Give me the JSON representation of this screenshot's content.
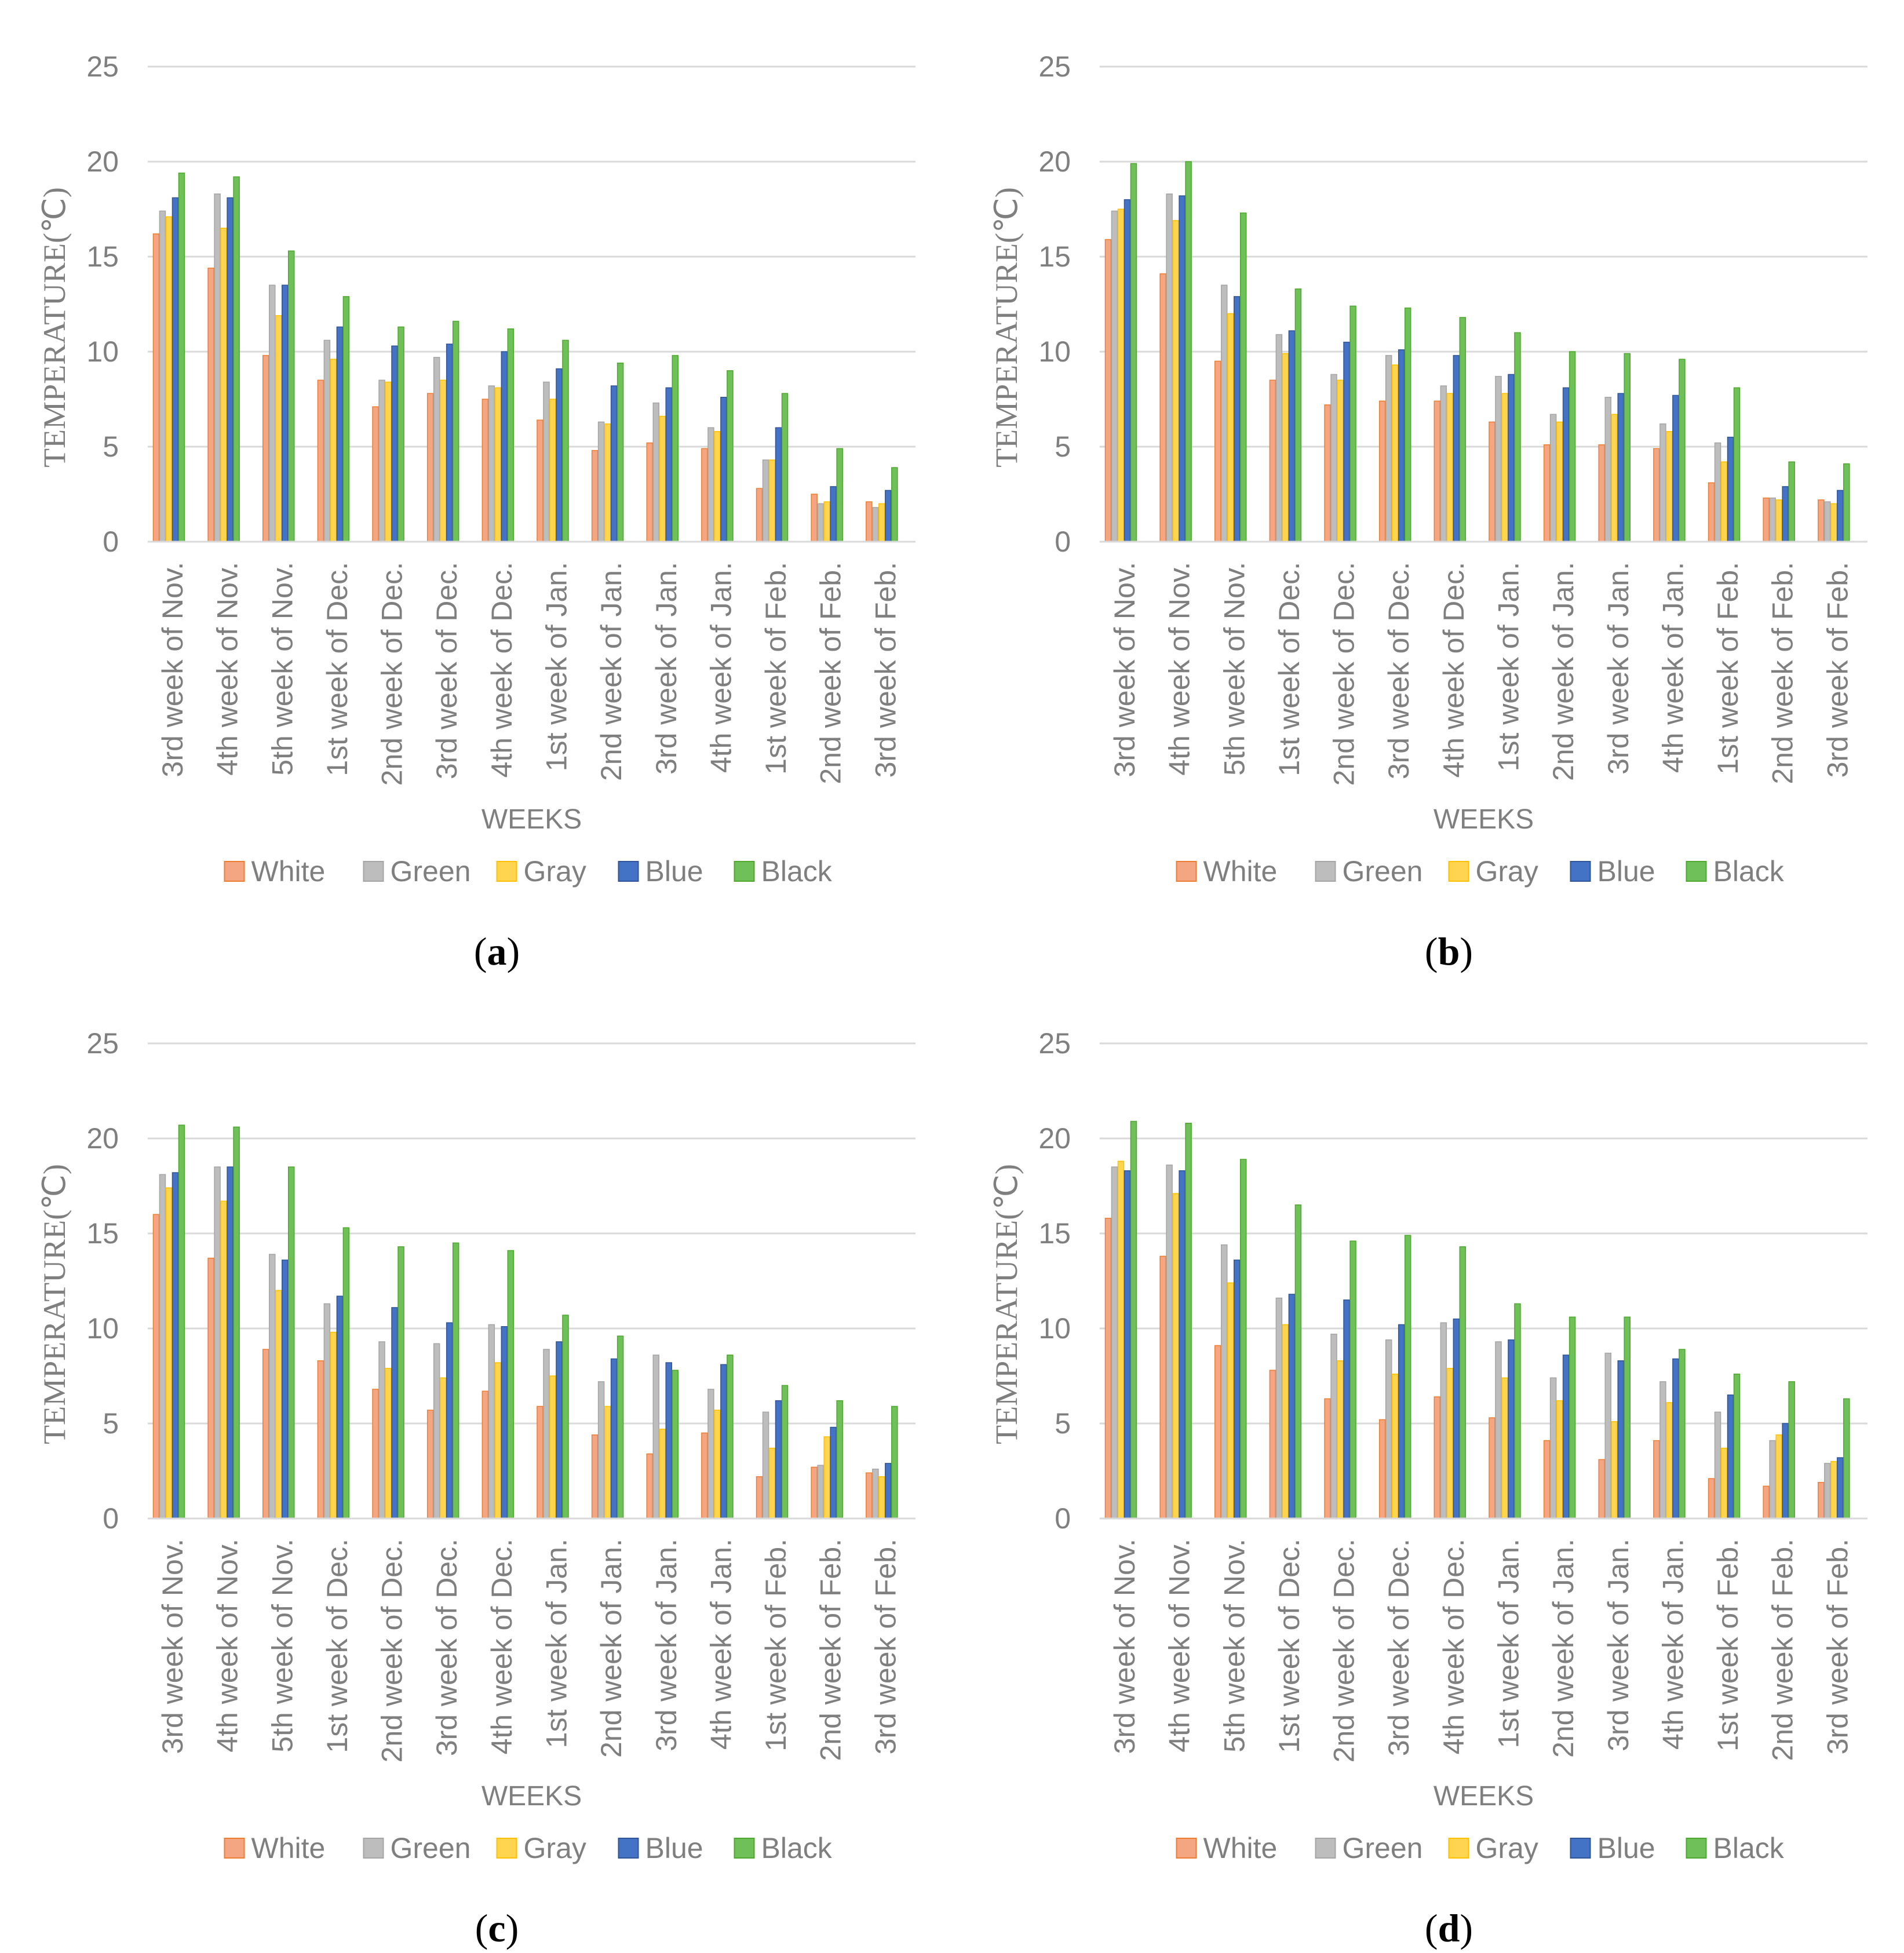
{
  "series_colors": {
    "White": "#f4a582",
    "Green": "#bdbdbd",
    "Gray": "#ffd54f",
    "Blue": "#4472c4",
    "Black": "#70c05a"
  },
  "series_strokes": {
    "White": "#ed7d31",
    "Green": "#a5a5a5",
    "Gray": "#ffc000",
    "Blue": "#2f5597",
    "Black": "#4ea72e"
  },
  "chart_data": [
    {
      "type": "bar",
      "panel_label": "a",
      "xlabel": "WEEKS",
      "ylabel": "TEMPERATURE(℃)",
      "ylim": [
        0,
        25
      ],
      "yticks": [
        0,
        5,
        10,
        15,
        20,
        25
      ],
      "grid": true,
      "legend_position": "bottom",
      "categories": [
        "3rd week of Nov.",
        "4th week of Nov.",
        "5th week of Nov.",
        "1st week of Dec.",
        "2nd week of Dec.",
        "3rd week of Dec.",
        "4th week of Dec.",
        "1st week of Jan.",
        "2nd week of Jan.",
        "3rd week of Jan.",
        "4th week of Jan.",
        "1st week of Feb.",
        "2nd week of Feb.",
        "3rd week of Feb."
      ],
      "series": [
        {
          "name": "White",
          "values": [
            16.2,
            14.4,
            9.8,
            8.5,
            7.1,
            7.8,
            7.5,
            6.4,
            4.8,
            5.2,
            4.9,
            2.8,
            2.5,
            2.1
          ]
        },
        {
          "name": "Green",
          "values": [
            17.4,
            18.3,
            13.5,
            10.6,
            8.5,
            9.7,
            8.2,
            8.4,
            6.3,
            7.3,
            6.0,
            4.3,
            2.0,
            1.8
          ]
        },
        {
          "name": "Gray",
          "values": [
            17.1,
            16.5,
            11.9,
            9.6,
            8.4,
            8.5,
            8.1,
            7.5,
            6.2,
            6.6,
            5.8,
            4.3,
            2.1,
            2.0
          ]
        },
        {
          "name": "Blue",
          "values": [
            18.1,
            18.1,
            13.5,
            11.3,
            10.3,
            10.4,
            10.0,
            9.1,
            8.2,
            8.1,
            7.6,
            6.0,
            2.9,
            2.7
          ]
        },
        {
          "name": "Black",
          "values": [
            19.4,
            19.2,
            15.3,
            12.9,
            11.3,
            11.6,
            11.2,
            10.6,
            9.4,
            9.8,
            9.0,
            7.8,
            4.9,
            3.9
          ]
        }
      ]
    },
    {
      "type": "bar",
      "panel_label": "b",
      "xlabel": "WEEKS",
      "ylabel": "TEMPERATURE(℃)",
      "ylim": [
        0,
        25
      ],
      "yticks": [
        0,
        5,
        10,
        15,
        20,
        25
      ],
      "grid": true,
      "legend_position": "bottom",
      "categories": [
        "3rd week of Nov.",
        "4th week of Nov.",
        "5th week of Nov.",
        "1st week of Dec.",
        "2nd week of Dec.",
        "3rd week of Dec.",
        "4th week of Dec.",
        "1st week of Jan.",
        "2nd week of Jan.",
        "3rd week of Jan.",
        "4th week of Jan.",
        "1st week of Feb.",
        "2nd week of Feb.",
        "3rd week of Feb."
      ],
      "series": [
        {
          "name": "White",
          "values": [
            15.9,
            14.1,
            9.5,
            8.5,
            7.2,
            7.4,
            7.4,
            6.3,
            5.1,
            5.1,
            4.9,
            3.1,
            2.3,
            2.2
          ]
        },
        {
          "name": "Green",
          "values": [
            17.4,
            18.3,
            13.5,
            10.9,
            8.8,
            9.8,
            8.2,
            8.7,
            6.7,
            7.6,
            6.2,
            5.2,
            2.3,
            2.1
          ]
        },
        {
          "name": "Gray",
          "values": [
            17.5,
            16.9,
            12.0,
            9.9,
            8.5,
            9.3,
            7.8,
            7.8,
            6.3,
            6.7,
            5.8,
            4.2,
            2.2,
            2.0
          ]
        },
        {
          "name": "Blue",
          "values": [
            18.0,
            18.2,
            12.9,
            11.1,
            10.5,
            10.1,
            9.8,
            8.8,
            8.1,
            7.8,
            7.7,
            5.5,
            2.9,
            2.7
          ]
        },
        {
          "name": "Black",
          "values": [
            19.9,
            20.0,
            17.3,
            13.3,
            12.4,
            12.3,
            11.8,
            11.0,
            10.0,
            9.9,
            9.6,
            8.1,
            4.2,
            4.1
          ]
        }
      ]
    },
    {
      "type": "bar",
      "panel_label": "c",
      "xlabel": "WEEKS",
      "ylabel": "TEMPERATURE(℃)",
      "ylim": [
        0,
        25
      ],
      "yticks": [
        0,
        5,
        10,
        15,
        20,
        25
      ],
      "grid": true,
      "legend_position": "bottom",
      "categories": [
        "3rd week of Nov.",
        "4th week of Nov.",
        "5th week of Nov.",
        "1st week of Dec.",
        "2nd week of Dec.",
        "3rd week of Dec.",
        "4th week of Dec.",
        "1st week of Jan.",
        "2nd week of Jan.",
        "3rd week of Jan.",
        "4th week of Jan.",
        "1st week of Feb.",
        "2nd week of Feb.",
        "3rd week of Feb."
      ],
      "series": [
        {
          "name": "White",
          "values": [
            16.0,
            13.7,
            8.9,
            8.3,
            6.8,
            5.7,
            6.7,
            5.9,
            4.4,
            3.4,
            4.5,
            2.2,
            2.7,
            2.4
          ]
        },
        {
          "name": "Green",
          "values": [
            18.1,
            18.5,
            13.9,
            11.3,
            9.3,
            9.2,
            10.2,
            8.9,
            7.2,
            8.6,
            6.8,
            5.6,
            2.8,
            2.6
          ]
        },
        {
          "name": "Gray",
          "values": [
            17.4,
            16.7,
            12.0,
            9.8,
            7.9,
            7.4,
            8.2,
            7.5,
            5.9,
            4.7,
            5.7,
            3.7,
            4.3,
            2.2
          ]
        },
        {
          "name": "Blue",
          "values": [
            18.2,
            18.5,
            13.6,
            11.7,
            11.1,
            10.3,
            10.1,
            9.3,
            8.4,
            8.2,
            8.1,
            6.2,
            4.8,
            2.9
          ]
        },
        {
          "name": "Black",
          "values": [
            20.7,
            20.6,
            18.5,
            15.3,
            14.3,
            14.5,
            14.1,
            10.7,
            9.6,
            7.8,
            8.6,
            7.0,
            6.2,
            5.9
          ]
        }
      ]
    },
    {
      "type": "bar",
      "panel_label": "d",
      "xlabel": "WEEKS",
      "ylabel": "TEMPERATURE(℃)",
      "ylim": [
        0,
        25
      ],
      "yticks": [
        0,
        5,
        10,
        15,
        20,
        25
      ],
      "grid": true,
      "legend_position": "bottom",
      "categories": [
        "3rd week of Nov.",
        "4th week of Nov.",
        "5th week of Nov.",
        "1st week of Dec.",
        "2nd week of Dec.",
        "3rd week of Dec.",
        "4th week of Dec.",
        "1st week of Jan.",
        "2nd week of Jan.",
        "3rd week of Jan.",
        "4th week of Jan.",
        "1st week of Feb.",
        "2nd week of Feb.",
        "3rd week of Feb."
      ],
      "series": [
        {
          "name": "White",
          "values": [
            15.8,
            13.8,
            9.1,
            7.8,
            6.3,
            5.2,
            6.4,
            5.3,
            4.1,
            3.1,
            4.1,
            2.1,
            1.7,
            1.9
          ]
        },
        {
          "name": "Green",
          "values": [
            18.5,
            18.6,
            14.4,
            11.6,
            9.7,
            9.4,
            10.3,
            9.3,
            7.4,
            8.7,
            7.2,
            5.6,
            4.1,
            2.9
          ]
        },
        {
          "name": "Gray",
          "values": [
            18.8,
            17.1,
            12.4,
            10.2,
            8.3,
            7.6,
            7.9,
            7.4,
            6.2,
            5.1,
            6.1,
            3.7,
            4.4,
            3.0
          ]
        },
        {
          "name": "Blue",
          "values": [
            18.3,
            18.3,
            13.6,
            11.8,
            11.5,
            10.2,
            10.5,
            9.4,
            8.6,
            8.3,
            8.4,
            6.5,
            5.0,
            3.2
          ]
        },
        {
          "name": "Black",
          "values": [
            20.9,
            20.8,
            18.9,
            16.5,
            14.6,
            14.9,
            14.3,
            11.3,
            10.6,
            10.6,
            8.9,
            7.6,
            7.2,
            6.3
          ]
        }
      ]
    }
  ]
}
